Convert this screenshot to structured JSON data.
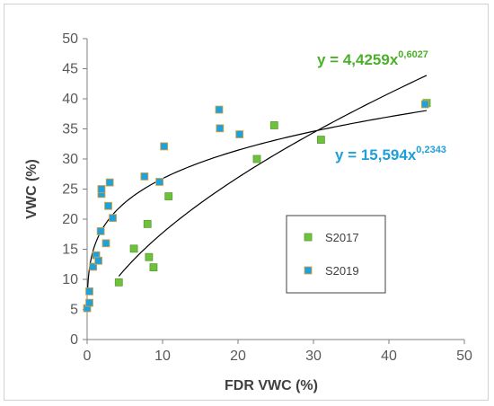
{
  "chart_data": {
    "type": "scatter",
    "xlabel": "FDR VWC (%)",
    "ylabel": "VWC (%)",
    "xlim": [
      0,
      50
    ],
    "ylim": [
      0,
      50
    ],
    "xticks": [
      "0",
      "10",
      "20",
      "30",
      "40",
      "50"
    ],
    "yticks": [
      "0",
      "5",
      "10",
      "15",
      "20",
      "25",
      "30",
      "35",
      "40",
      "45",
      "50"
    ],
    "grid": false,
    "legend_position": "right-middle",
    "series": [
      {
        "name": "S2017",
        "color": "#70c040",
        "marker": "square",
        "points": [
          [
            4.2,
            9.5
          ],
          [
            6.2,
            15.1
          ],
          [
            8.0,
            19.2
          ],
          [
            8.2,
            13.7
          ],
          [
            8.8,
            12.0
          ],
          [
            10.8,
            23.8
          ],
          [
            22.5,
            30.0
          ],
          [
            24.8,
            35.6
          ],
          [
            31.0,
            33.2
          ],
          [
            45.0,
            39.3
          ]
        ],
        "trendline": {
          "label": "y = 4,4259x",
          "exponent": "0,6027",
          "a": 4.4259,
          "b": 0.6027,
          "x_range": [
            4.2,
            45.0
          ]
        }
      },
      {
        "name": "S2019",
        "color": "#1fa2dc",
        "marker": "square",
        "points": [
          [
            0.0,
            5.2
          ],
          [
            0.3,
            6.1
          ],
          [
            0.3,
            8.0
          ],
          [
            0.8,
            12.1
          ],
          [
            1.2,
            14.0
          ],
          [
            1.5,
            13.1
          ],
          [
            1.8,
            18.0
          ],
          [
            1.9,
            24.2
          ],
          [
            1.9,
            25.0
          ],
          [
            2.5,
            16.0
          ],
          [
            2.8,
            22.2
          ],
          [
            3.0,
            26.1
          ],
          [
            3.4,
            20.2
          ],
          [
            7.6,
            27.1
          ],
          [
            9.6,
            26.2
          ],
          [
            10.2,
            32.1
          ],
          [
            17.5,
            38.2
          ],
          [
            17.6,
            35.1
          ],
          [
            20.2,
            34.1
          ],
          [
            44.8,
            39.1
          ]
        ],
        "trendline": {
          "label": "y = 15,594x",
          "exponent": "0,2343",
          "a": 15.594,
          "b": 0.2343,
          "x_range": [
            0.05,
            45.0
          ]
        }
      }
    ],
    "equation_colors": {
      "S2017": "#4caf2a",
      "S2019": "#1e9fd8"
    }
  }
}
